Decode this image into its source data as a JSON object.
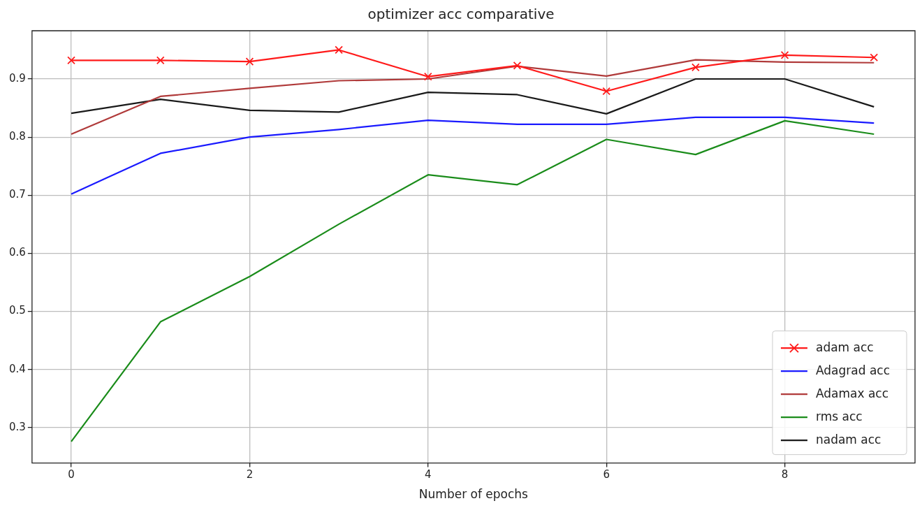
{
  "chart_data": {
    "type": "line",
    "title": "optimizer acc comparative",
    "xlabel": "Number of epochs",
    "x": [
      0,
      1,
      2,
      3,
      4,
      5,
      6,
      7,
      8,
      9
    ],
    "series": [
      {
        "name": "adam acc",
        "color": "#ff1a1a",
        "marker": "cross",
        "values": [
          0.932,
          0.932,
          0.93,
          0.95,
          0.904,
          0.923,
          0.879,
          0.92,
          0.941,
          0.937
        ]
      },
      {
        "name": "Adagrad acc",
        "color": "#1a1aff",
        "marker": "none",
        "values": [
          0.702,
          0.772,
          0.8,
          0.813,
          0.829,
          0.822,
          0.822,
          0.834,
          0.834,
          0.824
        ]
      },
      {
        "name": "Adamax acc",
        "color": "#b03a3a",
        "marker": "none",
        "values": [
          0.805,
          0.87,
          0.884,
          0.897,
          0.9,
          0.922,
          0.905,
          0.933,
          0.929,
          0.928
        ]
      },
      {
        "name": "rms acc",
        "color": "#1a8c1a",
        "marker": "none",
        "values": [
          0.276,
          0.482,
          0.56,
          0.65,
          0.735,
          0.718,
          0.796,
          0.77,
          0.828,
          0.805
        ]
      },
      {
        "name": "nadam acc",
        "color": "#1a1a1a",
        "marker": "none",
        "values": [
          0.841,
          0.865,
          0.846,
          0.843,
          0.877,
          0.873,
          0.84,
          0.9,
          0.9,
          0.852
        ]
      }
    ],
    "xlim": [
      -0.44,
      9.46
    ],
    "xticks": [
      0,
      2,
      4,
      6,
      8
    ],
    "ylim": [
      0.239,
      0.983
    ],
    "yticks": [
      0.3,
      0.4,
      0.5,
      0.6,
      0.7,
      0.8,
      0.9
    ],
    "grid": true,
    "legend": "bottom right",
    "line_style": "solid"
  }
}
